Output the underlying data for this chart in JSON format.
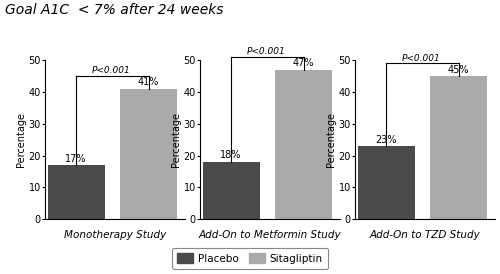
{
  "title": "Goal A1C  < 7% after 24 weeks",
  "panels": [
    {
      "label": "Monotherapy Study",
      "placebo_val": 17,
      "sita_val": 41,
      "placebo_label": "17%",
      "sita_label": "41%",
      "pvalue": "P<0.001"
    },
    {
      "label": "Add-On to Metformin Study",
      "placebo_val": 18,
      "sita_val": 47,
      "placebo_label": "18%",
      "sita_label": "47%",
      "pvalue": "P<0.001"
    },
    {
      "label": "Add-On to TZD Study",
      "placebo_val": 23,
      "sita_val": 45,
      "placebo_label": "23%",
      "sita_label": "45%",
      "pvalue": "P<0.001"
    }
  ],
  "ylabel": "Percentage",
  "ylim": [
    0,
    50
  ],
  "yticks": [
    0,
    10,
    20,
    30,
    40,
    50
  ],
  "placebo_color": "#4a4a4a",
  "sita_color": "#aaaaaa",
  "legend_placebo": "Placebo",
  "legend_sita": "Sitagliptin",
  "bg_color": "#ffffff",
  "title_fontsize": 10,
  "axis_label_fontsize": 7,
  "tick_fontsize": 7,
  "bar_label_fontsize": 7,
  "study_label_fontsize": 7.5,
  "pvalue_fontsize": 6.5,
  "legend_fontsize": 7.5,
  "bar_width": 0.55,
  "x_positions": [
    0.3,
    1.0
  ]
}
